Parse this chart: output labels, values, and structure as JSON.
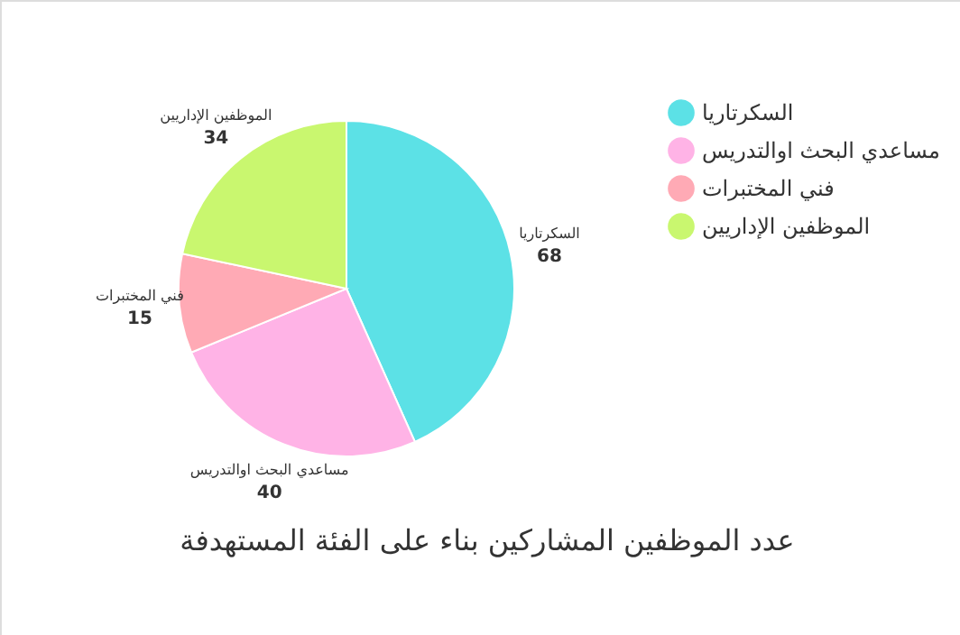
{
  "chart_data": {
    "type": "pie",
    "title": "عدد الموظفين المشاركين بناء على الفئة المستهدفة",
    "categories": [
      "السكرتاريا",
      "مساعدي البحث اوالتدريس",
      "فني المختبرات",
      "الموظفين الإداريين"
    ],
    "values": [
      68,
      40,
      15,
      34
    ],
    "colors": [
      "#5ce1e6",
      "#ffb3e6",
      "#ffaab5",
      "#c9f76f"
    ],
    "data_labels": true,
    "legend": "top right"
  }
}
